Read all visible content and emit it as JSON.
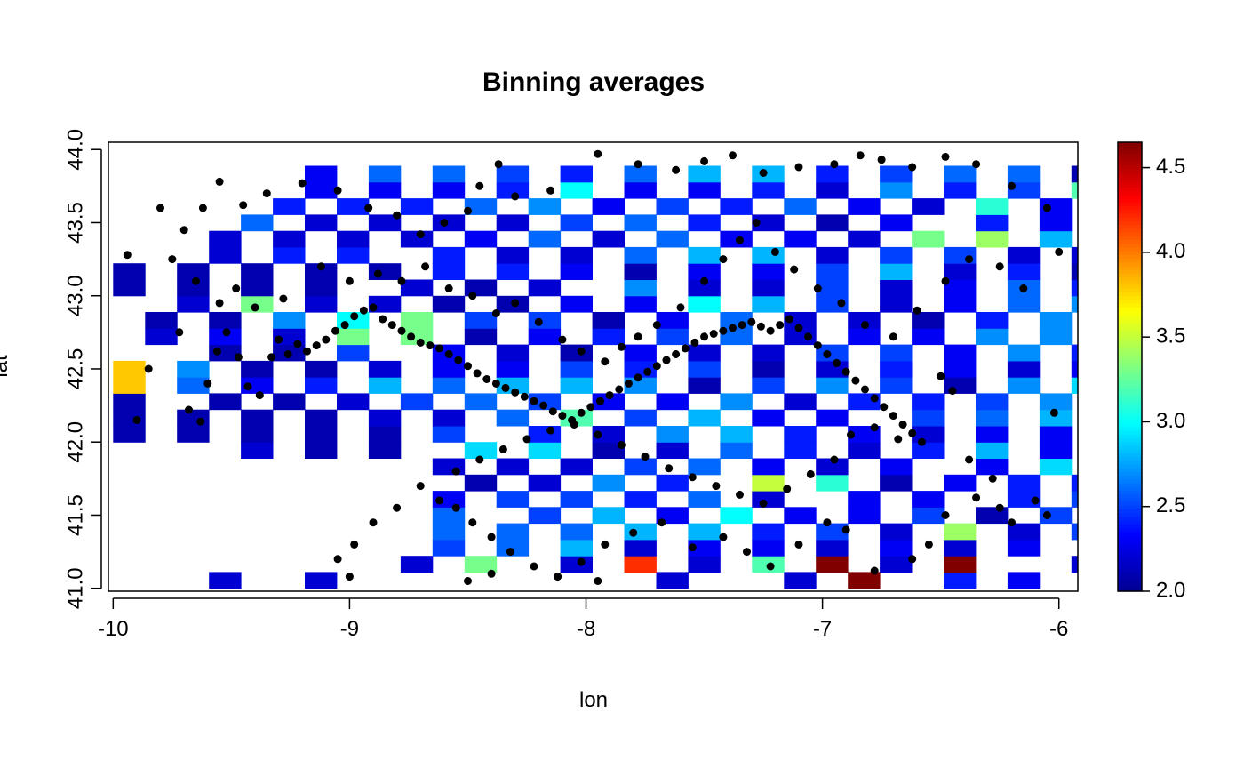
{
  "chart_data": {
    "type": "heatmap",
    "title": "Binning averages",
    "xlabel": "lon",
    "ylabel": "lat",
    "xlim": [
      -10.02,
      -5.92
    ],
    "ylim": [
      40.98,
      44.05
    ],
    "x_ticks": [
      -10,
      -9,
      -8,
      -7,
      -6
    ],
    "y_ticks": [
      41.0,
      41.5,
      42.0,
      42.5,
      43.0,
      43.5,
      44.0
    ],
    "x_tick_labels": [
      "-10",
      "-9",
      "-8",
      "-7",
      "-6"
    ],
    "y_tick_labels": [
      "41.0",
      "41.5",
      "42.0",
      "42.5",
      "43.0",
      "43.5",
      "44.0"
    ],
    "colorbar": {
      "range": [
        2.0,
        4.65
      ],
      "ticks": [
        2.0,
        2.5,
        3.0,
        3.5,
        4.0,
        4.5
      ],
      "tick_labels": [
        "2.0",
        "2.5",
        "3.0",
        "3.5",
        "4.0",
        "4.5"
      ],
      "palette": [
        "#00008F",
        "#0000FF",
        "#0080FF",
        "#00FFFF",
        "#80FF80",
        "#FFFF00",
        "#FF8000",
        "#FF0000",
        "#800000"
      ]
    },
    "grid": false,
    "legend": "colorbar-right",
    "bins": {
      "lon_min": -10,
      "lat_min": 41.0,
      "lon_step": 0.1351,
      "lat_step": 0.1111,
      "rows": [
        "...2.2..2.2..........2.2.2..2.2.9.3..2.4.2.3.2..2.3.3.1..........2.7.2.2.3.3.3.2.1...",
        ".........2.2.3.3..2.2.4.2.2.2.3.2.6.2.2.2.5.2.5..2.2.2.1.....2.6.2.8.3.2.8.2.3.2.3..",
        "..........2.5.2.6.2.8.2.2.2.3.2.3.2.2.2.3.2.2.2.3..2.4.3.4..2.4.2.6.2.9.2.6.2.3.2.6.",
        "..........2.6.2.6.2.6.2.8.2.8.2.4.2.5.2.2.3.4.2.2.2.5.2.2.5.2.7.2.8.2.4.2.3.2.2.2.6.2.4.",
        "..........2.6..2.5.2.8.2.3.3.0.2.3.2.3.2.5.2.1.2.5.2.4.2.3.2.6.2.7.3.2.2.5.2.5.3.2.2.1",
        "..........2.3.2.5.2.5.2.4.2.6.2.2..2.3.2.3..2.4.2.5.2.5.2.4.2.4.2.4.4.8.2.9.2.4.2.4.2.5.2.8.",
        "...........2.1.2.2.2.7.2.4..3.5.3.1.2.1.2.3.2.4.2.4.2.1.2.4.2.1.2.5.2.6.2.7.2.9.2.2.2.1.2.5...2.1.",
        "..........2.2.2.2.2.2.2.5.2.6.2.3.2.2.2.3..2.3.2.9.3.5.2.5.2.4.2.1.2.5.2.8.2.7.3.7.2.7.2.4.2.2.2.1.2.2.",
        "....2.2.2.1.2.1..2.9.2.9.2.1.2.2.2.6.2.4.2.2.2.4.2.8.2.3.2.5.2.6.2.5.2.7.2.6..2.8.2.3.2.9.2.1.",
        "2.1.2.1.2.1.2.1.2.1.2.5..2.4.2.2.2.7.2.8.2.4.2.3.2.2.2.3.2.3.2.5.2.2.2.2.2.4.2.3.2.2.2.3.2.6.2.4.2.3.2.7.2.5.2.2.2.1.2.1",
        "2.1.2.1.2.1.2.1.2.2.2.2.2.6.3.2.2.5.2.8.2.3.2.3..2.5.2.6.2.8.2.6.2.3.3.1.2.4.2.2.3.1.2.6.2.7.2.6.2.7.3.0.2.2.2.9.4.0.3.3.2.6..",
        "2.1..2.1.2.1.2.2.2.5.2.6.2.5.2.3.2.3.2.7.2.2.2.4.2.4.2.5.2.7.2.6.2.5.2.3.2.7.2.5.2.1.3.0.2.4.2.3.2.5.2.5.2.5.2.4.2.6.3.9.4.2..",
        "3.8.2.6.2.3.2.4.2.8.2.6.2.8.2.8.2.7.2.1.2.5.2.7.2.5.2.1.2.7.2.9.2.5.2.1.2.5.2.7.3.5.2.5.2.5.2.4.2.5.2.4.2.7.2.6.2.5.2.5..2.7.2.7",
        "3.8.2.7.2.1.2.1.2.2.2.3.2.3.2.5.2.4.2.5.2.1.2.2.2.4.2.3.2.2.2.3.2.2.2.6.2.2.2.6.2.5.2.5.2.2.2.3.2.3.2.3.2.2.2.5.2.2.2.1.2.2..2.6.2.6.2.6.",
        "...2.1.2.1.2.5..2.3.2.2.2.1.2.3.2.2.2.2.2.5.2.5.2.3.2.7.2.4.2.5.2.9.2.5.2.3.2.2.2.2.2.5.2.3.2.2.3.1.2.4.2.4.2.9.2.3.2.4.2.4...",
        ".2.2.2.3.2.2.3.3.3.3.2.1.2.3.2.4.2.5.2.6.2.2.2.3.2.3.2.7.2.7.2.3.2.3.2.4.2.1.2.6.2.9.2.8.2.4.2.3.2.8.2.6.2.2.2.2.2.6.2.7.2.8.2.8.2.6.2.7...",
        ".2.1.2.1.2.7.3.0.3.3.2.5.2.5.2.1.2.3.2.6.2.2.2.2.2.1.2.4.2.7.2.8.3.2.2.1.2.2.2.5.2.1.2.5.2.4.2.3.2.8.2.4.2.6.2.6.3.2.2.1.2.3.2.8.2.6.2.8.2.4.2.7.2.3.2.6.2.7.2.7.2.9",
        "..2.2.3.3.2.2.2.2.2.1.2.1.2.3.2.3.3.0.2.8.2.5.2.2.2.3.2.6.2.7.2.3.2.2.2.4.2.5.2.5.2.1.2.2.2.6.2.2.2.3.2.4.2.5.2.3.2.3.3.1.2.1.2.3.2.2.2.2.2.1.2.4.2.3.",
        "2.1.2.1.2.1.2.1..2.2.2.1.2.2..2.7.2.2.2.2.2.5.2.2.2.3.2.6.2.4.2.8.2.5.2.3.2.1.2.1.2.4.2.2.2.3.2.4.2.1.2.4.2.3.2.6.2.3.2.2.2.8.2.6.2.6.2.3.2.2.2.1.2.1.2.6.2.1",
        "2.1.2.1.2.1.2.1.2.1.2.4.2.4.2.3.2.1.2.3.2.3.2.5.2.8.2.2.2.4.2.1.2.2.2.3.2.7.2.2.2.3.2.2.2.3.2.3.2.3.2.2.2.6.2.4.2.4.2.1.2.2.2.1.2.2.2.5.2.3.2.1.2.1.2.1.2.1.",
        "...2.2.2.4.2.4..2.4.2.2.2.2.2.6.2.8.2.8.2.2.2.5.2.5.2.2.2.2.2.1.2.1.2.3.2.3.2.2.3.4.3.7.3.1.3.1.2.2.2.3.2.2.2.4.2.4.2.8.2.2.2.1.2.1.2.2...",
        "...2.2.2.2.2.2.2.2.2.3.2.6.2.2.2.6.2.3.2.3.2.2.3.3.3.4.2.8.2.2.2.5.2.4.2.5.2.2.2.4.2.4.2.3.2.3.2.3.2.3.2.2.2.3.2.7.2.3.2.6.3.3.4.4.4.4..",
        "....2.6.2.2.2.2.2.2.2.2.2.5.2.6.2.4.2.2.2.1.2.3..2.4.2.3.2.2.2.7.2.5.2.1.2.5.2.6.2.3.2.5.2.6.2.6.2.2.3.1.3.4.2.4.2.4..",
        ".....2.4.2.4.2.4.2.6.2.7.2.3.2.5.2.4.2.6.2.3.2.2.3.1.2.3..2.6.2.5.2.7.2.6.2.9.2.4.2.6.2.5.2.3.2.3.2.2.2.8.3.4.2.7.2.3...",
        "......2.3.2.3.2.3.2.4.3.0.2.3.2.3.2.4.2.2.2.7.2.4.2.5.3.2.3.5.2.6.2.5.2.9.2.5.2.7.2.4.2.5.2.4.2.8.2.2.3.3.2.8.2.6.2.6.2.8.",
        "......2.3.2.6.2.6.2.5.2.4.2.6.2.8.2.8.2.4.2.5.2.6.2.6.2.1.2.4.3.1.2.4.2.1.2.5.2.4.2.2.2.4.2.5.2.9.2.6.2.5.2.4.2.5.2.6.2.6.2.6.2.6"
      ]
    },
    "points": [
      [
        -9.94,
        43.28
      ],
      [
        -9.85,
        42.5
      ],
      [
        -9.9,
        42.15
      ],
      [
        -9.72,
        42.75
      ],
      [
        -9.68,
        42.22
      ],
      [
        -9.63,
        42.14
      ],
      [
        -9.6,
        42.4
      ],
      [
        -9.56,
        42.62
      ],
      [
        -9.52,
        42.75
      ],
      [
        -9.47,
        42.58
      ],
      [
        -9.43,
        42.38
      ],
      [
        -9.38,
        42.32
      ],
      [
        -9.33,
        42.58
      ],
      [
        -9.3,
        42.7
      ],
      [
        -9.26,
        42.6
      ],
      [
        -9.22,
        42.67
      ],
      [
        -9.18,
        42.62
      ],
      [
        -9.14,
        42.66
      ],
      [
        -9.1,
        42.7
      ],
      [
        -9.06,
        42.76
      ],
      [
        -9.02,
        42.8
      ],
      [
        -8.98,
        42.86
      ],
      [
        -8.94,
        42.9
      ],
      [
        -8.9,
        42.92
      ],
      [
        -8.86,
        42.84
      ],
      [
        -8.82,
        42.8
      ],
      [
        -8.78,
        42.76
      ],
      [
        -8.74,
        42.72
      ],
      [
        -8.7,
        42.68
      ],
      [
        -8.66,
        42.66
      ],
      [
        -8.62,
        42.64
      ],
      [
        -8.58,
        42.6
      ],
      [
        -8.54,
        42.56
      ],
      [
        -8.5,
        42.52
      ],
      [
        -8.46,
        42.47
      ],
      [
        -8.42,
        42.43
      ],
      [
        -8.38,
        42.4
      ],
      [
        -8.34,
        42.37
      ],
      [
        -8.3,
        42.34
      ],
      [
        -8.26,
        42.31
      ],
      [
        -8.22,
        42.28
      ],
      [
        -8.18,
        42.25
      ],
      [
        -8.14,
        42.21
      ],
      [
        -8.1,
        42.18
      ],
      [
        -8.06,
        42.15
      ],
      [
        -8.02,
        42.2
      ],
      [
        -7.98,
        42.24
      ],
      [
        -7.94,
        42.28
      ],
      [
        -7.9,
        42.32
      ],
      [
        -7.86,
        42.36
      ],
      [
        -7.82,
        42.4
      ],
      [
        -7.78,
        42.44
      ],
      [
        -7.74,
        42.48
      ],
      [
        -7.7,
        42.52
      ],
      [
        -7.66,
        42.56
      ],
      [
        -7.62,
        42.6
      ],
      [
        -7.58,
        42.64
      ],
      [
        -7.54,
        42.68
      ],
      [
        -7.5,
        42.72
      ],
      [
        -7.46,
        42.74
      ],
      [
        -7.42,
        42.76
      ],
      [
        -7.38,
        42.78
      ],
      [
        -7.34,
        42.8
      ],
      [
        -7.3,
        42.82
      ],
      [
        -7.26,
        42.79
      ],
      [
        -7.22,
        42.76
      ],
      [
        -7.18,
        42.8
      ],
      [
        -7.14,
        42.84
      ],
      [
        -7.1,
        42.78
      ],
      [
        -7.06,
        42.72
      ],
      [
        -7.02,
        42.66
      ],
      [
        -6.98,
        42.6
      ],
      [
        -6.94,
        42.54
      ],
      [
        -6.9,
        42.48
      ],
      [
        -6.86,
        42.42
      ],
      [
        -6.82,
        42.36
      ],
      [
        -6.78,
        42.3
      ],
      [
        -6.74,
        42.24
      ],
      [
        -6.7,
        42.18
      ],
      [
        -6.66,
        42.12
      ],
      [
        -6.62,
        42.06
      ],
      [
        -6.58,
        42.0
      ],
      [
        -6.5,
        42.45
      ],
      [
        -6.45,
        42.35
      ],
      [
        -6.02,
        42.2
      ],
      [
        -6.0,
        43.3
      ],
      [
        -6.05,
        43.6
      ],
      [
        -6.2,
        43.75
      ],
      [
        -6.35,
        43.9
      ],
      [
        -6.48,
        43.95
      ],
      [
        -6.62,
        43.88
      ],
      [
        -6.75,
        43.93
      ],
      [
        -6.84,
        43.96
      ],
      [
        -6.95,
        43.9
      ],
      [
        -7.1,
        43.88
      ],
      [
        -7.25,
        43.84
      ],
      [
        -7.38,
        43.96
      ],
      [
        -7.5,
        43.92
      ],
      [
        -7.62,
        43.86
      ],
      [
        -7.78,
        43.9
      ],
      [
        -7.95,
        43.97
      ],
      [
        -8.15,
        43.72
      ],
      [
        -8.3,
        43.68
      ],
      [
        -8.37,
        43.9
      ],
      [
        -8.45,
        43.75
      ],
      [
        -8.5,
        43.58
      ],
      [
        -8.6,
        43.5
      ],
      [
        -8.7,
        43.42
      ],
      [
        -8.8,
        43.55
      ],
      [
        -8.92,
        43.6
      ],
      [
        -9.05,
        43.72
      ],
      [
        -9.2,
        43.77
      ],
      [
        -9.35,
        43.7
      ],
      [
        -9.45,
        43.62
      ],
      [
        -9.55,
        43.78
      ],
      [
        -9.62,
        43.6
      ],
      [
        -9.7,
        43.45
      ],
      [
        -9.8,
        43.6
      ],
      [
        -9.75,
        43.25
      ],
      [
        -9.65,
        43.1
      ],
      [
        -9.55,
        42.95
      ],
      [
        -9.48,
        43.05
      ],
      [
        -9.4,
        42.92
      ],
      [
        -9.28,
        42.98
      ],
      [
        -9.12,
        43.2
      ],
      [
        -9.0,
        43.1
      ],
      [
        -8.88,
        43.15
      ],
      [
        -8.78,
        43.1
      ],
      [
        -8.68,
        43.2
      ],
      [
        -8.58,
        43.05
      ],
      [
        -8.48,
        43.0
      ],
      [
        -8.38,
        42.88
      ],
      [
        -8.3,
        42.95
      ],
      [
        -8.2,
        42.82
      ],
      [
        -8.1,
        42.7
      ],
      [
        -8.02,
        42.62
      ],
      [
        -7.92,
        42.55
      ],
      [
        -7.85,
        42.65
      ],
      [
        -7.78,
        42.72
      ],
      [
        -7.7,
        42.8
      ],
      [
        -7.6,
        42.92
      ],
      [
        -7.5,
        43.1
      ],
      [
        -7.42,
        43.25
      ],
      [
        -7.35,
        43.38
      ],
      [
        -7.28,
        43.5
      ],
      [
        -7.2,
        43.3
      ],
      [
        -7.12,
        43.18
      ],
      [
        -7.02,
        43.05
      ],
      [
        -6.92,
        42.95
      ],
      [
        -6.82,
        42.8
      ],
      [
        -6.7,
        42.72
      ],
      [
        -6.6,
        42.9
      ],
      [
        -6.48,
        43.1
      ],
      [
        -6.38,
        43.25
      ],
      [
        -6.25,
        43.2
      ],
      [
        -6.15,
        43.05
      ],
      [
        -6.1,
        41.6
      ],
      [
        -6.05,
        41.5
      ],
      [
        -6.2,
        41.45
      ],
      [
        -6.25,
        41.55
      ],
      [
        -6.35,
        41.62
      ],
      [
        -6.48,
        41.5
      ],
      [
        -6.55,
        41.3
      ],
      [
        -6.62,
        41.2
      ],
      [
        -6.78,
        41.12
      ],
      [
        -6.9,
        41.4
      ],
      [
        -6.98,
        41.45
      ],
      [
        -7.1,
        41.3
      ],
      [
        -7.22,
        41.15
      ],
      [
        -7.32,
        41.25
      ],
      [
        -7.42,
        41.35
      ],
      [
        -7.55,
        41.28
      ],
      [
        -7.68,
        41.45
      ],
      [
        -7.8,
        41.38
      ],
      [
        -7.92,
        41.3
      ],
      [
        -8.02,
        41.18
      ],
      [
        -8.12,
        41.08
      ],
      [
        -8.22,
        41.15
      ],
      [
        -8.32,
        41.25
      ],
      [
        -8.4,
        41.35
      ],
      [
        -8.48,
        41.45
      ],
      [
        -8.55,
        41.55
      ],
      [
        -8.62,
        41.6
      ],
      [
        -8.7,
        41.7
      ],
      [
        -8.8,
        41.55
      ],
      [
        -8.9,
        41.45
      ],
      [
        -8.98,
        41.3
      ],
      [
        -9.05,
        41.2
      ],
      [
        -9.0,
        41.08
      ],
      [
        -8.5,
        41.05
      ],
      [
        -8.4,
        41.1
      ],
      [
        -7.95,
        41.05
      ],
      [
        -8.55,
        41.8
      ],
      [
        -8.45,
        41.88
      ],
      [
        -8.35,
        41.95
      ],
      [
        -8.25,
        42.02
      ],
      [
        -8.15,
        42.08
      ],
      [
        -8.05,
        42.12
      ],
      [
        -7.95,
        42.05
      ],
      [
        -7.85,
        41.98
      ],
      [
        -7.75,
        41.9
      ],
      [
        -7.65,
        41.82
      ],
      [
        -7.55,
        41.76
      ],
      [
        -7.45,
        41.7
      ],
      [
        -7.35,
        41.64
      ],
      [
        -7.25,
        41.58
      ],
      [
        -7.15,
        41.68
      ],
      [
        -7.05,
        41.78
      ],
      [
        -6.95,
        41.88
      ],
      [
        -6.88,
        42.05
      ],
      [
        -6.78,
        42.1
      ],
      [
        -6.68,
        42.02
      ],
      [
        -6.38,
        41.88
      ],
      [
        -6.28,
        41.75
      ]
    ]
  }
}
